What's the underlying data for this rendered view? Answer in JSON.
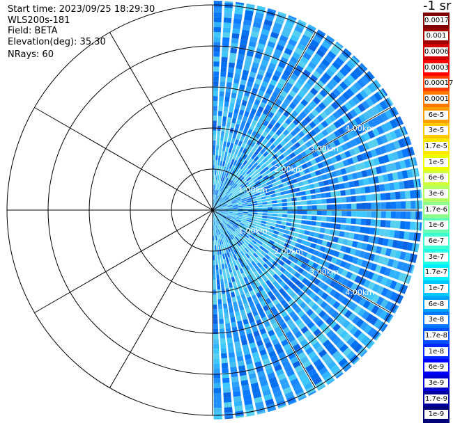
{
  "header": {
    "start_time": "Start time: 2023/09/25 18:29:30",
    "instrument": "WLS200s-181",
    "field": "Field: BETA",
    "elevation": "Elevation(deg): 35.30",
    "nrays": "NRays: 60"
  },
  "chart_data": {
    "type": "heatmap",
    "projection": "polar-ppi",
    "unit_label": "-1 sr",
    "sector_deg": [
      0,
      180
    ],
    "n_rays": 60,
    "range_rings_km": [
      1,
      2,
      3,
      4,
      5
    ],
    "ring_labels": [
      "1.00km",
      "2.00km",
      "3.00km",
      "4.00km"
    ],
    "spokes_deg": [
      0,
      30,
      60,
      90,
      120,
      150,
      180,
      210,
      240,
      270,
      300,
      330
    ],
    "max_range_km": 5.1,
    "colorbar": {
      "labels": [
        "0.0017",
        "0.001",
        "0.0006",
        "0.0003",
        "0.00017",
        "0.0001",
        "6e-5",
        "3e-5",
        "1.7e-5",
        "1e-5",
        "6e-6",
        "3e-6",
        "1.7e-6",
        "1e-6",
        "6e-7",
        "3e-7",
        "1.7e-7",
        "1e-7",
        "6e-8",
        "3e-8",
        "1.7e-8",
        "1e-8",
        "6e-9",
        "3e-9",
        "1.7e-9",
        "1e-9"
      ],
      "colors": [
        "#800000",
        "#a00000",
        "#d00000",
        "#ff0000",
        "#ff3c00",
        "#ff7800",
        "#ffa000",
        "#ffc800",
        "#ffe600",
        "#f0ff00",
        "#d2ff3c",
        "#b4ff64",
        "#8cff8c",
        "#64ffb4",
        "#3cffd2",
        "#1effe6",
        "#00f0ff",
        "#00c8ff",
        "#00a0ff",
        "#0078ff",
        "#0050ff",
        "#0028ff",
        "#0000ff",
        "#0000d0",
        "#0000a0",
        "#000078"
      ]
    }
  }
}
